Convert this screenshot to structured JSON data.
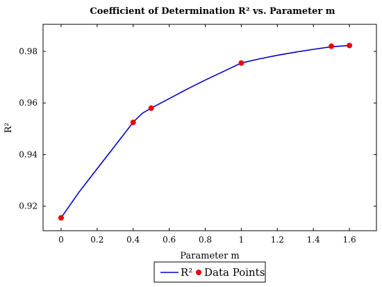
{
  "chart_data": {
    "type": "line",
    "title": "Coefficient of Determination R² vs. Parameter m",
    "xlabel": "Parameter m",
    "ylabel": "R²",
    "xlim": [
      -0.1,
      1.75
    ],
    "ylim": [
      0.9105,
      0.9905
    ],
    "x_ticks": [
      0,
      0.2,
      0.4,
      0.6,
      0.8,
      1,
      1.2,
      1.4,
      1.6
    ],
    "x_tick_labels": [
      "0",
      "0.2",
      "0.4",
      "0.6",
      "0.8",
      "1",
      "1.2",
      "1.4",
      "1.6"
    ],
    "y_ticks": [
      0.92,
      0.94,
      0.96,
      0.98
    ],
    "y_tick_labels": [
      "0.92",
      "0.94",
      "0.96",
      "0.98"
    ],
    "grid": false,
    "legend_position": "bottom-center",
    "series": [
      {
        "name": "R²",
        "kind": "line",
        "color": "#0000cc",
        "x": [
          0,
          0.1,
          0.2,
          0.3,
          0.4,
          0.45,
          0.5,
          0.6,
          0.7,
          0.8,
          0.9,
          1.0,
          1.1,
          1.2,
          1.3,
          1.4,
          1.5,
          1.6
        ],
        "y": [
          0.9155,
          0.9255,
          0.9345,
          0.9435,
          0.9525,
          0.956,
          0.958,
          0.9617,
          0.9654,
          0.9689,
          0.9722,
          0.9755,
          0.9771,
          0.9785,
          0.9797,
          0.9808,
          0.9818,
          0.9823
        ]
      },
      {
        "name": "Data Points",
        "kind": "scatter",
        "color": "#ee0000",
        "x": [
          0,
          0.4,
          0.5,
          1.0,
          1.5,
          1.6
        ],
        "y": [
          0.9155,
          0.9525,
          0.958,
          0.9755,
          0.982,
          0.9823
        ]
      }
    ]
  }
}
